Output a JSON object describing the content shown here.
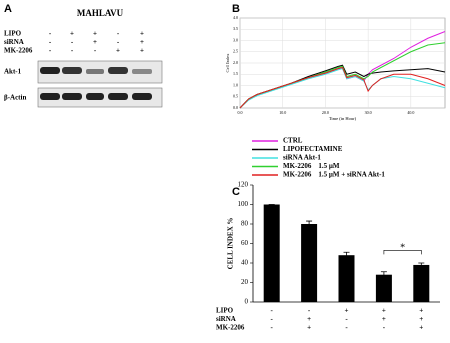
{
  "blot": {
    "label": "A",
    "cell_line": "MAHLAVU",
    "conditions": [
      {
        "label": "LIPO",
        "signs": [
          "-",
          "+",
          "+",
          "-",
          "+"
        ]
      },
      {
        "label": "siRNA",
        "signs": [
          "-",
          "-",
          "+",
          "-",
          "+"
        ]
      },
      {
        "label": "MK-2206",
        "signs": [
          "-",
          "-",
          "-",
          "+",
          "+"
        ]
      }
    ],
    "rows": [
      "Akt-1",
      "β-Actin"
    ]
  },
  "chart_data": [
    {
      "type": "line",
      "panel": "B",
      "x_label": "Time (in Hour)",
      "y_label": "Cell Index",
      "x": [
        0,
        2,
        4,
        8,
        12,
        16,
        20,
        23,
        24,
        25,
        27,
        29,
        30,
        31,
        33,
        36,
        40,
        44,
        48
      ],
      "xlim": [
        0,
        48
      ],
      "ylim": [
        0,
        4
      ],
      "xticks": [
        {
          "value": 0,
          "label": "0.0"
        },
        {
          "value": 10,
          "label": "10.0"
        },
        {
          "value": 20,
          "label": "20.0"
        },
        {
          "value": 30,
          "label": "30.0"
        },
        {
          "value": 40,
          "label": "40.0"
        }
      ],
      "yticks": [
        {
          "value": 0,
          "label": "0.0"
        },
        {
          "value": 0.5,
          "label": "0.5"
        },
        {
          "value": 1,
          "label": "1.0"
        },
        {
          "value": 1.5,
          "label": "1.5"
        },
        {
          "value": 2,
          "label": "2.0"
        },
        {
          "value": 2.5,
          "label": "2.5"
        },
        {
          "value": 3,
          "label": "3.0"
        },
        {
          "value": 3.5,
          "label": "3.5"
        },
        {
          "value": 4,
          "label": "4.0"
        }
      ],
      "grid": true,
      "series": [
        {
          "name": "CTRL",
          "color": "#e020e0",
          "values": [
            0,
            0.4,
            0.6,
            0.85,
            1.1,
            1.35,
            1.55,
            1.75,
            1.8,
            1.3,
            1.4,
            1.2,
            1.5,
            1.7,
            1.9,
            2.2,
            2.7,
            3.1,
            3.4
          ]
        },
        {
          "name": "LIPOFECTAMINE",
          "color": "#000000",
          "values": [
            0,
            0.4,
            0.6,
            0.85,
            1.1,
            1.4,
            1.65,
            1.85,
            1.9,
            1.5,
            1.6,
            1.4,
            1.5,
            1.55,
            1.6,
            1.65,
            1.7,
            1.75,
            1.6
          ]
        },
        {
          "name": "siRNA Akt-1",
          "color": "#40e0e0",
          "values": [
            0,
            0.35,
            0.55,
            0.8,
            1.05,
            1.3,
            1.5,
            1.7,
            1.75,
            1.3,
            1.4,
            1.2,
            0.8,
            1.0,
            1.3,
            1.4,
            1.3,
            1.1,
            0.9
          ]
        },
        {
          "name": "MK-2206    1.5 µM",
          "color": "#30d030",
          "values": [
            0,
            0.4,
            0.6,
            0.85,
            1.1,
            1.35,
            1.6,
            1.8,
            1.85,
            1.4,
            1.5,
            1.3,
            1.4,
            1.6,
            1.8,
            2.1,
            2.5,
            2.8,
            2.9
          ]
        },
        {
          "name": "MK-2206    1.5 µM + siRNA Akt-1",
          "color": "#e02020",
          "values": [
            0,
            0.4,
            0.6,
            0.85,
            1.1,
            1.35,
            1.55,
            1.75,
            1.8,
            1.35,
            1.45,
            1.25,
            0.75,
            1.0,
            1.3,
            1.5,
            1.5,
            1.3,
            1.0
          ]
        }
      ]
    },
    {
      "type": "bar",
      "panel": "C",
      "y_label": "CELL INDEX %",
      "color": "#000000",
      "values": [
        100,
        80,
        48,
        28,
        38
      ],
      "errors": [
        0,
        3,
        3,
        3,
        2
      ],
      "ylim": [
        0,
        120
      ],
      "yticks": [
        0,
        20,
        40,
        60,
        80,
        100,
        120
      ],
      "annotation": "*",
      "conditions": [
        {
          "label": "LIPO",
          "signs": [
            "-",
            "-",
            "+",
            "+",
            "+"
          ]
        },
        {
          "label": "siRNA",
          "signs": [
            "-",
            "+",
            "-",
            "+",
            "+"
          ]
        },
        {
          "label": "MK-2206",
          "signs": [
            "-",
            "+",
            "-",
            "-",
            "+"
          ]
        }
      ]
    }
  ]
}
